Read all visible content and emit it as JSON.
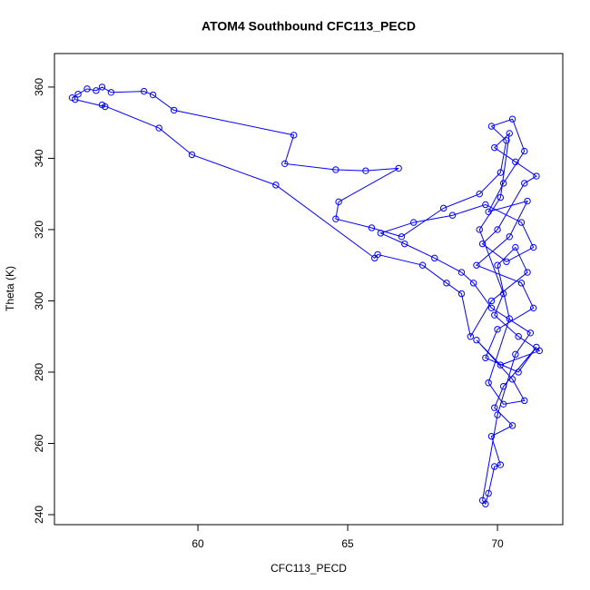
{
  "chart_data": {
    "type": "line",
    "title": "ATOM4 Southbound CFC113_PECD",
    "xlabel": "CFC113_PECD",
    "ylabel": "Theta (K)",
    "color": "#0000ff",
    "markers": "open-circle",
    "grid": false,
    "xlim": [
      55.21,
      72.18
    ],
    "ylim": [
      237.2,
      369.4
    ],
    "xticks": [
      60,
      65,
      70
    ],
    "yticks": [
      240,
      260,
      280,
      300,
      320,
      340,
      360
    ],
    "x": [
      55.8,
      56.0,
      56.3,
      56.6,
      56.8,
      57.1,
      58.2,
      58.5,
      59.2,
      63.2,
      62.9,
      64.6,
      65.6,
      66.7,
      64.7,
      64.6,
      65.8,
      66.8,
      68.2,
      69.4,
      70.1,
      70.3,
      69.8,
      70.5,
      70.9,
      70.2,
      69.7,
      71.0,
      70.4,
      69.3,
      70.8,
      71.2,
      70.0,
      69.6,
      70.7,
      71.3,
      70.2,
      69.9,
      70.5,
      69.8,
      70.1,
      69.9,
      69.7,
      69.6,
      69.5,
      70.0,
      70.6,
      71.1,
      69.8,
      69.2,
      68.8,
      67.9,
      66.9,
      66.1,
      67.2,
      68.5,
      69.6,
      70.8,
      71.2,
      70.3,
      69.5,
      70.0,
      70.9,
      71.3,
      70.6,
      69.9,
      70.4,
      70.1,
      69.4,
      70.2,
      69.9,
      70.7,
      71.4,
      70.1,
      69.3,
      70.5,
      70.9,
      70.2,
      69.7,
      70.4,
      70.0,
      70.6,
      71.0,
      69.8,
      69.1,
      68.8,
      68.3,
      67.5,
      66.0,
      65.9,
      62.6,
      59.8,
      58.7,
      56.8,
      56.9,
      55.9
    ],
    "values": [
      357,
      358,
      359.5,
      359,
      360,
      358.5,
      358.8,
      357.8,
      353.5,
      346.5,
      338.5,
      336.8,
      336.5,
      337.2,
      327.8,
      323,
      320.5,
      318,
      326,
      330,
      336,
      345,
      349,
      351,
      342,
      333,
      325,
      328,
      318,
      310,
      305,
      298,
      292,
      284,
      280,
      287,
      276,
      270,
      265,
      262,
      254,
      253.5,
      246,
      243,
      244,
      268,
      285,
      291,
      298,
      305,
      308,
      312,
      316,
      319,
      322,
      324,
      327,
      322,
      315,
      311,
      316,
      320,
      333,
      335,
      339,
      343,
      347,
      329,
      320,
      302,
      296,
      290,
      286,
      282,
      289,
      278,
      272,
      271,
      277,
      295,
      310,
      315,
      308,
      300,
      290,
      302,
      305,
      310,
      313,
      312,
      332.5,
      341,
      348.5,
      355,
      354.5,
      356.5
    ]
  }
}
